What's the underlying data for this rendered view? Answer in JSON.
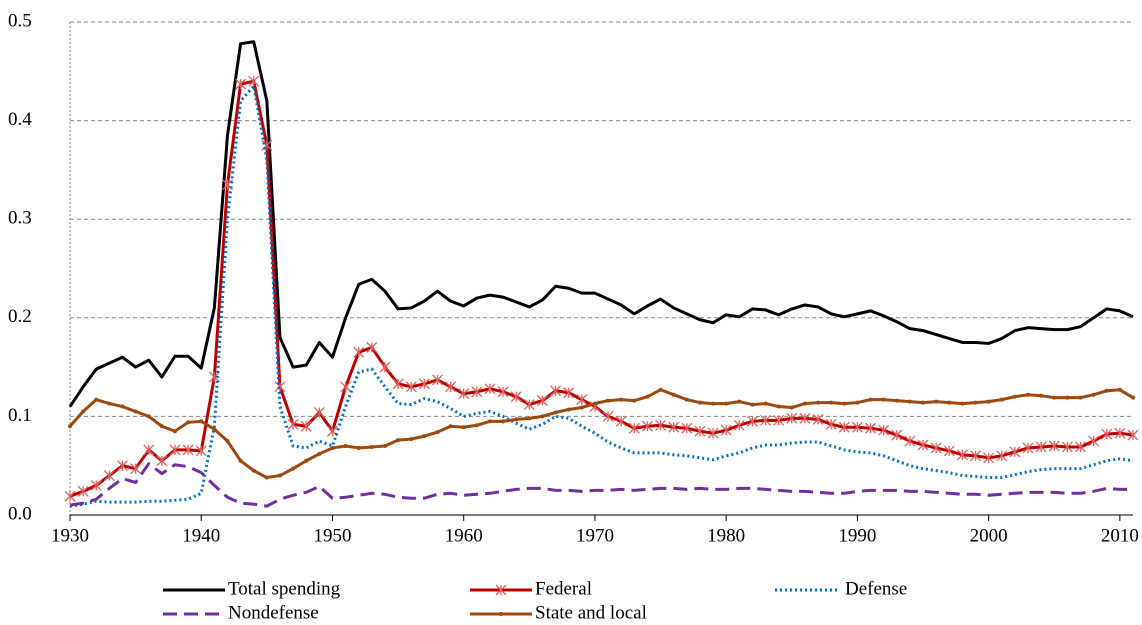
{
  "chart_data": {
    "type": "line",
    "x": [
      1930,
      1931,
      1932,
      1933,
      1934,
      1935,
      1936,
      1937,
      1938,
      1939,
      1940,
      1941,
      1942,
      1943,
      1944,
      1945,
      1946,
      1947,
      1948,
      1949,
      1950,
      1951,
      1952,
      1953,
      1954,
      1955,
      1956,
      1957,
      1958,
      1959,
      1960,
      1961,
      1962,
      1963,
      1964,
      1965,
      1966,
      1967,
      1968,
      1969,
      1970,
      1971,
      1972,
      1973,
      1974,
      1975,
      1976,
      1977,
      1978,
      1979,
      1980,
      1981,
      1982,
      1983,
      1984,
      1985,
      1986,
      1987,
      1988,
      1989,
      1990,
      1991,
      1992,
      1993,
      1994,
      1995,
      1996,
      1997,
      1998,
      1999,
      2000,
      2001,
      2002,
      2003,
      2004,
      2005,
      2006,
      2007,
      2008,
      2009,
      2010,
      2011
    ],
    "xlim": [
      1930,
      2011
    ],
    "xticks": [
      1930,
      1940,
      1950,
      1960,
      1970,
      1980,
      1990,
      2000,
      2010
    ],
    "ylim": [
      0,
      0.5
    ],
    "yticks": [
      {
        "value": 0,
        "label": "0.0"
      },
      0.1,
      0.2,
      0.3,
      0.4,
      0.5
    ],
    "grid": true,
    "legend": "bottom",
    "series": [
      {
        "name": "Total spending",
        "color": "#000000",
        "line_style": "solid",
        "marker": "none",
        "values": [
          0.11,
          0.13,
          0.148,
          0.154,
          0.16,
          0.15,
          0.157,
          0.14,
          0.161,
          0.161,
          0.149,
          0.21,
          0.385,
          0.478,
          0.48,
          0.42,
          0.18,
          0.15,
          0.152,
          0.175,
          0.16,
          0.2,
          0.234,
          0.239,
          0.227,
          0.209,
          0.21,
          0.217,
          0.227,
          0.217,
          0.212,
          0.22,
          0.223,
          0.221,
          0.216,
          0.211,
          0.218,
          0.232,
          0.23,
          0.225,
          0.225,
          0.219,
          0.213,
          0.204,
          0.212,
          0.219,
          0.21,
          0.204,
          0.198,
          0.195,
          0.203,
          0.201,
          0.209,
          0.208,
          0.203,
          0.209,
          0.213,
          0.211,
          0.204,
          0.201,
          0.204,
          0.207,
          0.202,
          0.196,
          0.189,
          0.187,
          0.183,
          0.179,
          0.175,
          0.175,
          0.174,
          0.179,
          0.187,
          0.19,
          0.189,
          0.188,
          0.188,
          0.191,
          0.2,
          0.209,
          0.207,
          0.201
        ]
      },
      {
        "name": "Federal",
        "color": "#c00000",
        "line_style": "solid",
        "marker": "asterisk",
        "values": [
          0.019,
          0.024,
          0.03,
          0.04,
          0.05,
          0.047,
          0.066,
          0.055,
          0.066,
          0.066,
          0.065,
          0.14,
          0.335,
          0.437,
          0.44,
          0.375,
          0.13,
          0.092,
          0.09,
          0.104,
          0.085,
          0.13,
          0.165,
          0.17,
          0.15,
          0.133,
          0.13,
          0.133,
          0.137,
          0.13,
          0.123,
          0.125,
          0.128,
          0.125,
          0.12,
          0.112,
          0.116,
          0.126,
          0.124,
          0.117,
          0.11,
          0.1,
          0.095,
          0.088,
          0.09,
          0.091,
          0.089,
          0.088,
          0.085,
          0.083,
          0.086,
          0.091,
          0.095,
          0.096,
          0.096,
          0.098,
          0.098,
          0.097,
          0.092,
          0.089,
          0.089,
          0.088,
          0.086,
          0.081,
          0.075,
          0.071,
          0.068,
          0.065,
          0.061,
          0.06,
          0.058,
          0.06,
          0.064,
          0.068,
          0.069,
          0.07,
          0.069,
          0.069,
          0.075,
          0.082,
          0.083,
          0.081
        ]
      },
      {
        "name": "Defense",
        "color": "#0070c0",
        "line_style": "dotted",
        "marker": "none",
        "values": [
          0.009,
          0.011,
          0.014,
          0.013,
          0.013,
          0.013,
          0.014,
          0.014,
          0.015,
          0.016,
          0.022,
          0.09,
          0.3,
          0.42,
          0.435,
          0.36,
          0.11,
          0.07,
          0.068,
          0.075,
          0.07,
          0.11,
          0.145,
          0.148,
          0.13,
          0.113,
          0.112,
          0.118,
          0.115,
          0.108,
          0.1,
          0.103,
          0.105,
          0.1,
          0.093,
          0.087,
          0.092,
          0.1,
          0.098,
          0.09,
          0.083,
          0.074,
          0.068,
          0.063,
          0.063,
          0.063,
          0.061,
          0.06,
          0.058,
          0.056,
          0.06,
          0.063,
          0.068,
          0.071,
          0.071,
          0.073,
          0.074,
          0.074,
          0.07,
          0.066,
          0.064,
          0.063,
          0.06,
          0.055,
          0.05,
          0.047,
          0.045,
          0.043,
          0.04,
          0.039,
          0.038,
          0.038,
          0.041,
          0.044,
          0.046,
          0.047,
          0.047,
          0.047,
          0.051,
          0.055,
          0.057,
          0.055
        ]
      },
      {
        "name": "Nondefense",
        "color": "#7030a0",
        "line_style": "dashed",
        "marker": "none",
        "values": [
          0.01,
          0.012,
          0.016,
          0.027,
          0.037,
          0.033,
          0.052,
          0.042,
          0.051,
          0.049,
          0.043,
          0.03,
          0.018,
          0.012,
          0.011,
          0.009,
          0.016,
          0.02,
          0.023,
          0.029,
          0.017,
          0.018,
          0.02,
          0.022,
          0.021,
          0.018,
          0.017,
          0.017,
          0.021,
          0.022,
          0.02,
          0.021,
          0.022,
          0.024,
          0.026,
          0.027,
          0.027,
          0.025,
          0.025,
          0.024,
          0.025,
          0.025,
          0.026,
          0.025,
          0.026,
          0.027,
          0.027,
          0.026,
          0.027,
          0.026,
          0.026,
          0.027,
          0.027,
          0.026,
          0.025,
          0.024,
          0.024,
          0.023,
          0.022,
          0.022,
          0.024,
          0.025,
          0.025,
          0.025,
          0.024,
          0.024,
          0.023,
          0.022,
          0.021,
          0.021,
          0.02,
          0.021,
          0.022,
          0.023,
          0.023,
          0.023,
          0.022,
          0.022,
          0.024,
          0.027,
          0.026,
          0.026
        ]
      },
      {
        "name": "State and local",
        "color": "#9c4a0f",
        "line_style": "solid",
        "marker": "dot",
        "values": [
          0.09,
          0.105,
          0.117,
          0.113,
          0.11,
          0.105,
          0.1,
          0.09,
          0.085,
          0.094,
          0.095,
          0.087,
          0.075,
          0.055,
          0.045,
          0.038,
          0.04,
          0.047,
          0.055,
          0.062,
          0.068,
          0.07,
          0.068,
          0.069,
          0.07,
          0.076,
          0.077,
          0.08,
          0.084,
          0.09,
          0.089,
          0.091,
          0.095,
          0.095,
          0.097,
          0.098,
          0.1,
          0.104,
          0.107,
          0.109,
          0.113,
          0.116,
          0.117,
          0.116,
          0.12,
          0.127,
          0.122,
          0.117,
          0.114,
          0.113,
          0.113,
          0.115,
          0.112,
          0.113,
          0.11,
          0.109,
          0.113,
          0.114,
          0.114,
          0.113,
          0.114,
          0.117,
          0.117,
          0.116,
          0.115,
          0.114,
          0.115,
          0.114,
          0.113,
          0.114,
          0.115,
          0.117,
          0.12,
          0.122,
          0.121,
          0.119,
          0.119,
          0.119,
          0.122,
          0.126,
          0.127,
          0.119
        ]
      }
    ]
  }
}
